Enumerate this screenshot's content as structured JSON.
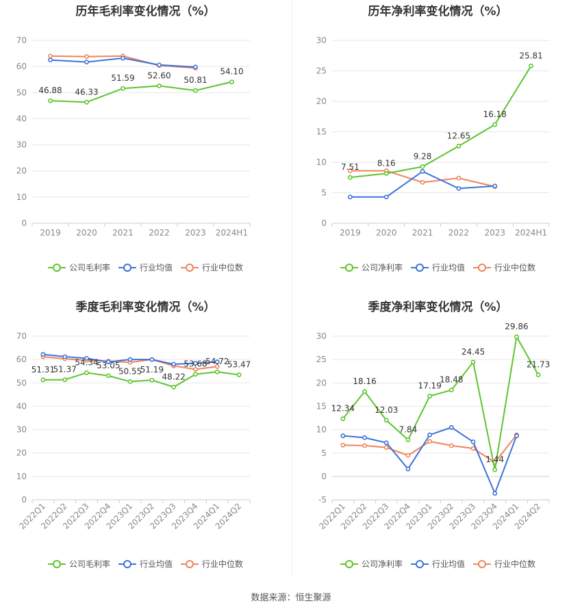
{
  "source_label": "数据来源：恒生聚源",
  "colors": {
    "company": "#5cc42d",
    "avg": "#3b72d9",
    "median": "#f08359"
  },
  "chart_data": [
    {
      "id": "annual_gross",
      "type": "line",
      "title": "历年毛利率变化情况（%）",
      "categories": [
        "2019",
        "2020",
        "2021",
        "2022",
        "2023",
        "2024H1"
      ],
      "ylim": [
        0,
        70
      ],
      "yticks": [
        0,
        10,
        20,
        30,
        40,
        50,
        60,
        70
      ],
      "rotate_labels": false,
      "legend": [
        "公司毛利率",
        "行业均值",
        "行业中位数"
      ],
      "series": [
        {
          "name": "公司毛利率",
          "values": [
            46.88,
            46.33,
            51.59,
            52.6,
            50.81,
            54.1
          ],
          "labels": [
            "46.88",
            "46.33",
            "51.59",
            "52.60",
            "50.81",
            "54.10"
          ]
        },
        {
          "name": "行业均值",
          "values": [
            62.5,
            61.7,
            63.2,
            60.6,
            59.8,
            null
          ]
        },
        {
          "name": "行业中位数",
          "values": [
            64.0,
            63.8,
            64.0,
            60.4,
            59.4,
            null
          ]
        }
      ]
    },
    {
      "id": "annual_net",
      "type": "line",
      "title": "历年净利率变化情况（%）",
      "categories": [
        "2019",
        "2020",
        "2021",
        "2022",
        "2023",
        "2024H1"
      ],
      "ylim": [
        0,
        30
      ],
      "yticks": [
        0,
        5,
        10,
        15,
        20,
        25,
        30
      ],
      "rotate_labels": false,
      "legend": [
        "公司净利率",
        "行业均值",
        "行业中位数"
      ],
      "series": [
        {
          "name": "公司净利率",
          "values": [
            7.51,
            8.16,
            9.28,
            12.65,
            16.18,
            25.81
          ],
          "labels": [
            "7.51",
            "8.16",
            "9.28",
            "12.65",
            "16.18",
            "25.81"
          ]
        },
        {
          "name": "行业均值",
          "values": [
            4.3,
            4.3,
            8.5,
            5.7,
            6.1,
            null
          ]
        },
        {
          "name": "行业中位数",
          "values": [
            8.6,
            8.6,
            6.7,
            7.4,
            6.0,
            null
          ]
        }
      ]
    },
    {
      "id": "quarterly_gross",
      "type": "line",
      "title": "季度毛利率变化情况（%）",
      "categories": [
        "2022Q1",
        "2022Q2",
        "2022Q3",
        "2022Q4",
        "2023Q1",
        "2023Q2",
        "2023Q3",
        "2023Q4",
        "2024Q1",
        "2024Q2"
      ],
      "ylim": [
        0,
        70
      ],
      "yticks": [
        0,
        10,
        20,
        30,
        40,
        50,
        60,
        70
      ],
      "rotate_labels": true,
      "legend": [
        "公司毛利率",
        "行业均值",
        "行业中位数"
      ],
      "series": [
        {
          "name": "公司毛利率",
          "values": [
            51.31,
            51.37,
            54.34,
            53.05,
            50.55,
            51.19,
            48.22,
            53.68,
            54.72,
            53.47
          ],
          "labels": [
            "51.31",
            "51.37",
            "54.34",
            "53.05",
            "50.55",
            "51.19",
            "48.22",
            "53.68",
            "54.72",
            "53.47"
          ]
        },
        {
          "name": "行业均值",
          "values": [
            62.2,
            61.2,
            60.5,
            59.0,
            60.0,
            60.0,
            58.0,
            58.4,
            59.0,
            null
          ]
        },
        {
          "name": "行业中位数",
          "values": [
            61.2,
            60.3,
            59.6,
            59.3,
            58.8,
            60.0,
            57.3,
            55.8,
            57.0,
            null
          ]
        }
      ]
    },
    {
      "id": "quarterly_net",
      "type": "line",
      "title": "季度净利率变化情况（%）",
      "categories": [
        "2022Q1",
        "2022Q2",
        "2022Q3",
        "2022Q4",
        "2023Q1",
        "2023Q2",
        "2023Q3",
        "2023Q4",
        "2024Q1",
        "2024Q2"
      ],
      "ylim": [
        -5,
        30
      ],
      "yticks": [
        -5,
        0,
        5,
        10,
        15,
        20,
        25,
        30
      ],
      "rotate_labels": true,
      "legend": [
        "公司净利率",
        "行业均值",
        "行业中位数"
      ],
      "series": [
        {
          "name": "公司净利率",
          "values": [
            12.34,
            18.16,
            12.03,
            7.84,
            17.19,
            18.48,
            24.45,
            1.44,
            29.86,
            21.73
          ],
          "labels": [
            "12.34",
            "18.16",
            "12.03",
            "7.84",
            "17.19",
            "18.48",
            "24.45",
            "1.44",
            "29.86",
            "21.73"
          ]
        },
        {
          "name": "行业均值",
          "values": [
            8.7,
            8.3,
            7.2,
            1.6,
            8.9,
            10.5,
            7.4,
            -3.6,
            8.7,
            null
          ]
        },
        {
          "name": "行业中位数",
          "values": [
            6.7,
            6.6,
            6.2,
            4.5,
            7.5,
            6.6,
            6.0,
            3.0,
            8.9,
            null
          ]
        }
      ]
    }
  ]
}
